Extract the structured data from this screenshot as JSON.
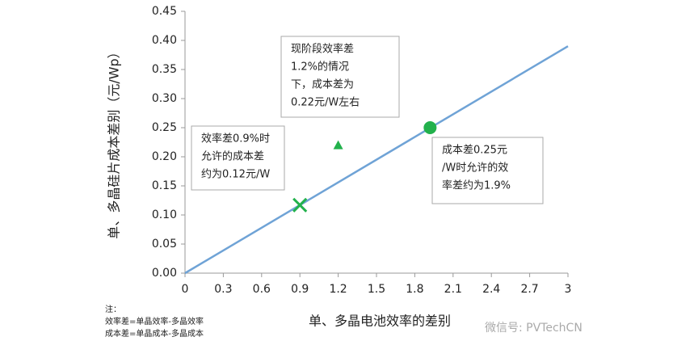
{
  "chart_data": {
    "type": "line",
    "x_label": "单、多晶电池效率的差别",
    "y_label": "单、多晶硅片成本差别（元/Wp）",
    "xlim": [
      0,
      3
    ],
    "ylim": [
      0,
      0.45
    ],
    "xticks": [
      0,
      0.3,
      0.6,
      0.9,
      1.2,
      1.5,
      1.8,
      2.1,
      2.4,
      2.7,
      3
    ],
    "yticks": [
      {
        "value": 0,
        "label": "0.00"
      },
      {
        "value": 0.05,
        "label": "0.05"
      },
      {
        "value": 0.1,
        "label": "0.10"
      },
      {
        "value": 0.15,
        "label": "0.15"
      },
      {
        "value": 0.2,
        "label": "0.20"
      },
      {
        "value": 0.25,
        "label": "0.25"
      },
      {
        "value": 0.3,
        "label": "0.30"
      },
      {
        "value": 0.35,
        "label": "0.35"
      },
      {
        "value": 0.4,
        "label": "0.40"
      },
      {
        "value": 0.45,
        "label": "0.45"
      }
    ],
    "grid": false,
    "series": [
      {
        "color": "#6fa3d6",
        "marker": "none",
        "x": [
          0,
          3
        ],
        "values": [
          0,
          0.39
        ]
      },
      {
        "color": "#22b14c",
        "marker": "x",
        "x": [
          0.9
        ],
        "values": [
          0.117
        ]
      },
      {
        "color": "#22b14c",
        "marker": "triangle",
        "x": [
          1.2
        ],
        "values": [
          0.22
        ]
      },
      {
        "color": "#22b14c",
        "marker": "circle",
        "x": [
          1.92
        ],
        "values": [
          0.25
        ]
      }
    ],
    "annotations": [
      {
        "lines": [
          "现阶段效率差",
          "1.2%的情况",
          "下，成本差为",
          "0.22元/W左右"
        ]
      },
      {
        "lines": [
          "效率差0.9%时",
          "允许的成本差",
          "约为0.12元/W"
        ]
      },
      {
        "lines": [
          "成本差0.25元",
          "/W时允许的效",
          "率差约为1.9%"
        ]
      }
    ],
    "notes": [
      "注：",
      "效率差=单晶效率-多晶效率",
      "成本差=单晶成本-多晶成本"
    ],
    "watermark": "微信号: PVTechCN"
  }
}
